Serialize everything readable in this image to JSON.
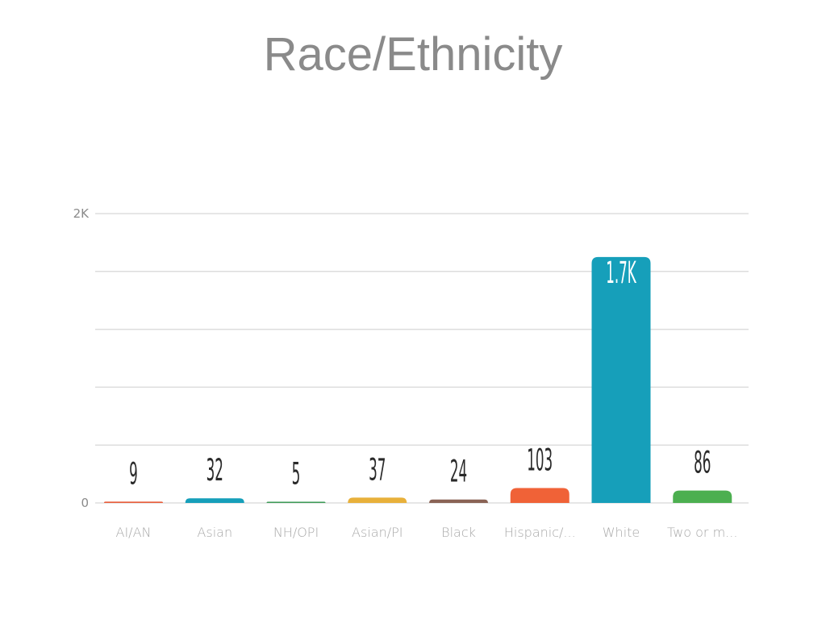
{
  "chart_data": {
    "type": "bar",
    "title": "Race/Ethnicity",
    "xlabel": "",
    "ylabel": "",
    "ylim": [
      0,
      2000
    ],
    "gridlines": [
      0,
      400,
      800,
      1200,
      1600,
      2000
    ],
    "y_tick_labels": [
      {
        "value": 0,
        "label": "0"
      },
      {
        "value": 2000,
        "label": "2K"
      }
    ],
    "grid": true,
    "categories": [
      "AI/AN",
      "Asian",
      "NH/OPI",
      "Asian/PI",
      "Black",
      "Hispanic/...",
      "White",
      "Two or m..."
    ],
    "values": [
      9,
      32,
      5,
      37,
      24,
      103,
      1700,
      86
    ],
    "data_labels": [
      "9",
      "32",
      "5",
      "37",
      "24",
      "103",
      "1.7K",
      "86"
    ],
    "colors": [
      "#e85c3a",
      "#169fba",
      "#3b9a55",
      "#e8b03a",
      "#8a6355",
      "#f06237",
      "#169fba",
      "#4caf50"
    ],
    "grid_color": "#dddddd"
  }
}
